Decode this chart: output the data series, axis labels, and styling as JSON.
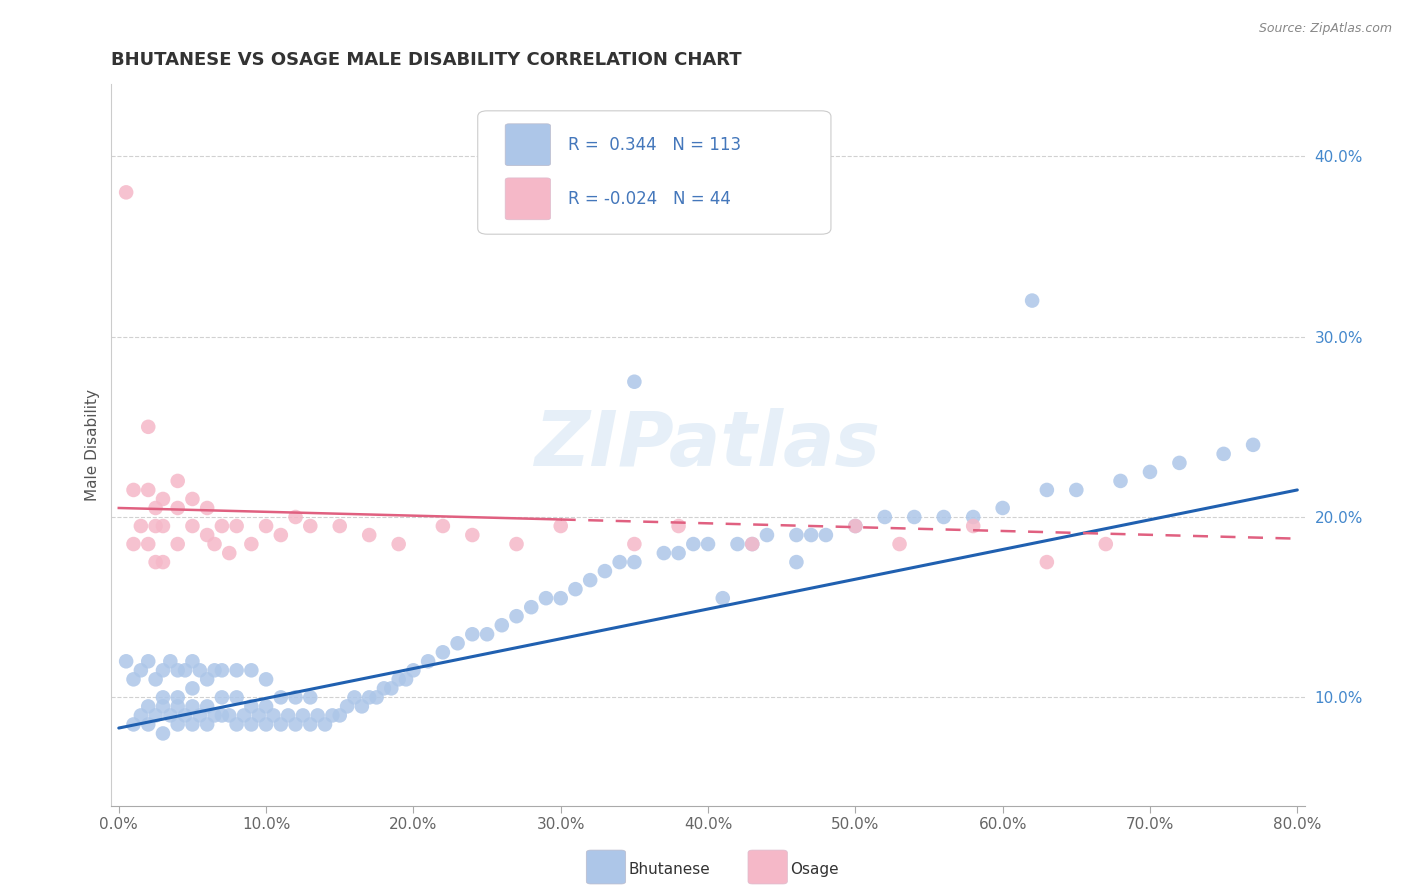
{
  "title": "BHUTANESE VS OSAGE MALE DISABILITY CORRELATION CHART",
  "ylabel": "Male Disability",
  "source": "Source: ZipAtlas.com",
  "xlim": [
    -0.005,
    0.805
  ],
  "ylim": [
    0.04,
    0.44
  ],
  "xtick_vals": [
    0.0,
    0.1,
    0.2,
    0.3,
    0.4,
    0.5,
    0.6,
    0.7,
    0.8
  ],
  "xtick_labels": [
    "0.0%",
    "10.0%",
    "20.0%",
    "30.0%",
    "40.0%",
    "50.0%",
    "60.0%",
    "70.0%",
    "80.0%"
  ],
  "ytick_vals": [
    0.1,
    0.2,
    0.3,
    0.4
  ],
  "ytick_labels": [
    "10.0%",
    "20.0%",
    "30.0%",
    "40.0%"
  ],
  "blue_R": "0.344",
  "blue_N": "113",
  "pink_R": "-0.024",
  "pink_N": "44",
  "blue_color": "#adc6e8",
  "pink_color": "#f5b8c8",
  "blue_line_color": "#2060b0",
  "pink_line_color": "#e06080",
  "legend_label_blue": "Bhutanese",
  "legend_label_pink": "Osage",
  "watermark": "ZIPatlas",
  "background_color": "#ffffff",
  "blue_scatter_x": [
    0.005,
    0.01,
    0.01,
    0.015,
    0.015,
    0.02,
    0.02,
    0.02,
    0.025,
    0.025,
    0.03,
    0.03,
    0.03,
    0.03,
    0.035,
    0.035,
    0.04,
    0.04,
    0.04,
    0.04,
    0.045,
    0.045,
    0.05,
    0.05,
    0.05,
    0.05,
    0.055,
    0.055,
    0.06,
    0.06,
    0.06,
    0.065,
    0.065,
    0.07,
    0.07,
    0.07,
    0.075,
    0.08,
    0.08,
    0.08,
    0.085,
    0.09,
    0.09,
    0.09,
    0.095,
    0.1,
    0.1,
    0.1,
    0.105,
    0.11,
    0.11,
    0.115,
    0.12,
    0.12,
    0.125,
    0.13,
    0.13,
    0.135,
    0.14,
    0.145,
    0.15,
    0.155,
    0.16,
    0.165,
    0.17,
    0.175,
    0.18,
    0.185,
    0.19,
    0.195,
    0.2,
    0.21,
    0.22,
    0.23,
    0.24,
    0.25,
    0.26,
    0.27,
    0.28,
    0.29,
    0.3,
    0.31,
    0.32,
    0.33,
    0.34,
    0.35,
    0.37,
    0.38,
    0.39,
    0.4,
    0.42,
    0.43,
    0.44,
    0.46,
    0.47,
    0.48,
    0.5,
    0.52,
    0.54,
    0.56,
    0.58,
    0.6,
    0.63,
    0.65,
    0.68,
    0.7,
    0.72,
    0.75,
    0.77,
    0.46,
    0.41,
    0.35,
    0.62
  ],
  "blue_scatter_y": [
    0.12,
    0.085,
    0.11,
    0.09,
    0.115,
    0.085,
    0.095,
    0.12,
    0.09,
    0.11,
    0.08,
    0.095,
    0.1,
    0.115,
    0.09,
    0.12,
    0.085,
    0.095,
    0.1,
    0.115,
    0.09,
    0.115,
    0.085,
    0.095,
    0.105,
    0.12,
    0.09,
    0.115,
    0.085,
    0.095,
    0.11,
    0.09,
    0.115,
    0.09,
    0.1,
    0.115,
    0.09,
    0.085,
    0.1,
    0.115,
    0.09,
    0.085,
    0.095,
    0.115,
    0.09,
    0.085,
    0.095,
    0.11,
    0.09,
    0.085,
    0.1,
    0.09,
    0.085,
    0.1,
    0.09,
    0.085,
    0.1,
    0.09,
    0.085,
    0.09,
    0.09,
    0.095,
    0.1,
    0.095,
    0.1,
    0.1,
    0.105,
    0.105,
    0.11,
    0.11,
    0.115,
    0.12,
    0.125,
    0.13,
    0.135,
    0.135,
    0.14,
    0.145,
    0.15,
    0.155,
    0.155,
    0.16,
    0.165,
    0.17,
    0.175,
    0.175,
    0.18,
    0.18,
    0.185,
    0.185,
    0.185,
    0.185,
    0.19,
    0.19,
    0.19,
    0.19,
    0.195,
    0.2,
    0.2,
    0.2,
    0.2,
    0.205,
    0.215,
    0.215,
    0.22,
    0.225,
    0.23,
    0.235,
    0.24,
    0.175,
    0.155,
    0.275,
    0.32
  ],
  "pink_scatter_x": [
    0.005,
    0.01,
    0.01,
    0.015,
    0.02,
    0.02,
    0.02,
    0.025,
    0.025,
    0.025,
    0.03,
    0.03,
    0.03,
    0.04,
    0.04,
    0.04,
    0.05,
    0.05,
    0.06,
    0.06,
    0.065,
    0.07,
    0.075,
    0.08,
    0.09,
    0.1,
    0.11,
    0.12,
    0.13,
    0.15,
    0.17,
    0.19,
    0.22,
    0.24,
    0.27,
    0.3,
    0.35,
    0.38,
    0.43,
    0.5,
    0.53,
    0.58,
    0.63,
    0.67
  ],
  "pink_scatter_y": [
    0.38,
    0.185,
    0.215,
    0.195,
    0.25,
    0.215,
    0.185,
    0.205,
    0.195,
    0.175,
    0.21,
    0.195,
    0.175,
    0.22,
    0.205,
    0.185,
    0.21,
    0.195,
    0.205,
    0.19,
    0.185,
    0.195,
    0.18,
    0.195,
    0.185,
    0.195,
    0.19,
    0.2,
    0.195,
    0.195,
    0.19,
    0.185,
    0.195,
    0.19,
    0.185,
    0.195,
    0.185,
    0.195,
    0.185,
    0.195,
    0.185,
    0.195,
    0.175,
    0.185
  ],
  "blue_line_start_x": 0.0,
  "blue_line_end_x": 0.8,
  "blue_line_start_y": 0.083,
  "blue_line_end_y": 0.215,
  "pink_line_start_x": 0.0,
  "pink_line_end_x": 0.8,
  "pink_line_start_y": 0.205,
  "pink_line_end_y": 0.188
}
